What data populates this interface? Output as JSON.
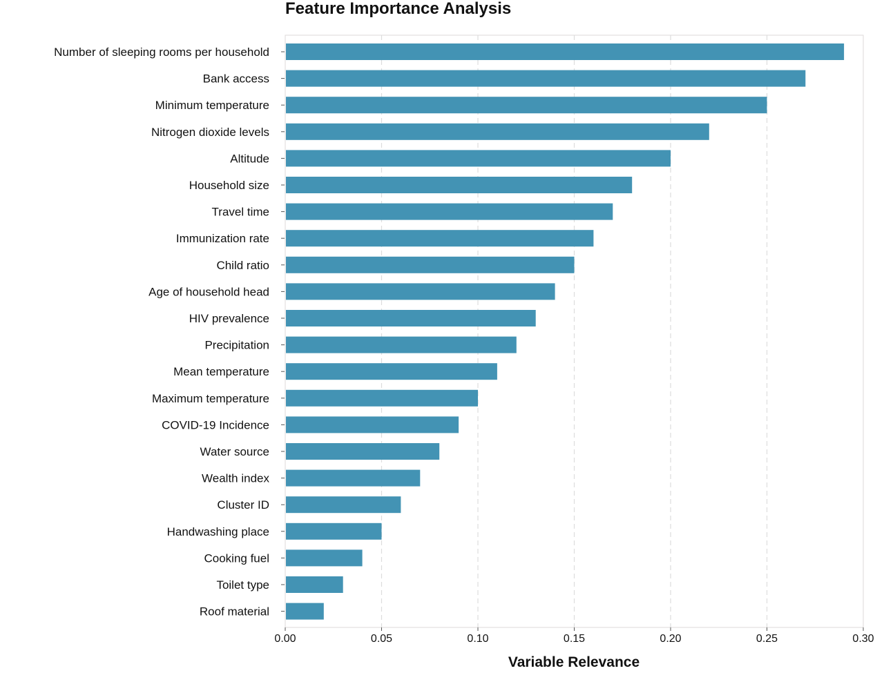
{
  "chart_data": {
    "type": "bar",
    "orientation": "horizontal",
    "title": "Feature Importance Analysis",
    "xlabel": "Variable Relevance",
    "ylabel": "",
    "xlim": [
      0,
      0.3
    ],
    "xticks": [
      "0.00",
      "0.05",
      "0.10",
      "0.15",
      "0.20",
      "0.25",
      "0.30"
    ],
    "grid": "vertical dashed",
    "bar_color": "#4393b4",
    "categories": [
      "Number of sleeping rooms per household",
      "Bank access",
      "Minimum temperature",
      "Nitrogen dioxide levels",
      "Altitude",
      "Household size",
      "Travel time",
      "Immunization rate",
      "Child ratio",
      "Age of household head",
      "HIV prevalence",
      "Precipitation",
      "Mean temperature",
      "Maximum temperature",
      "COVID-19 Incidence",
      "Water source",
      "Wealth index",
      "Cluster ID",
      "Handwashing place",
      "Cooking fuel",
      "Toilet type",
      "Roof material"
    ],
    "values": [
      0.29,
      0.27,
      0.25,
      0.22,
      0.2,
      0.18,
      0.17,
      0.16,
      0.15,
      0.14,
      0.13,
      0.12,
      0.11,
      0.1,
      0.09,
      0.08,
      0.07,
      0.06,
      0.05,
      0.04,
      0.03,
      0.02
    ]
  }
}
